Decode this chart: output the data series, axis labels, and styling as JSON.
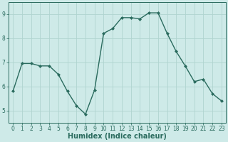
{
  "x": [
    0,
    1,
    2,
    3,
    4,
    5,
    6,
    7,
    8,
    9,
    10,
    11,
    12,
    13,
    14,
    15,
    16,
    17,
    18,
    19,
    20,
    21,
    22,
    23
  ],
  "y": [
    5.8,
    6.95,
    6.95,
    6.85,
    6.85,
    6.5,
    5.8,
    5.2,
    4.85,
    5.85,
    8.2,
    8.4,
    8.85,
    8.85,
    8.8,
    9.05,
    9.05,
    8.2,
    7.45,
    6.85,
    6.2,
    6.3,
    5.7,
    5.4
  ],
  "line_color": "#2a6b5e",
  "marker": "D",
  "markersize": 2.0,
  "linewidth": 1.0,
  "bg_color": "#ceeae8",
  "grid_color": "#b0d4d0",
  "xlabel": "Humidex (Indice chaleur)",
  "ylim": [
    4.5,
    9.5
  ],
  "xlim": [
    -0.5,
    23.5
  ],
  "yticks": [
    5,
    6,
    7,
    8,
    9
  ],
  "xticks": [
    0,
    1,
    2,
    3,
    4,
    5,
    6,
    7,
    8,
    9,
    10,
    11,
    12,
    13,
    14,
    15,
    16,
    17,
    18,
    19,
    20,
    21,
    22,
    23
  ],
  "tick_fontsize": 5.5,
  "xlabel_fontsize": 7.0,
  "tick_color": "#2a6b5e",
  "axis_color": "#2a6b5e"
}
